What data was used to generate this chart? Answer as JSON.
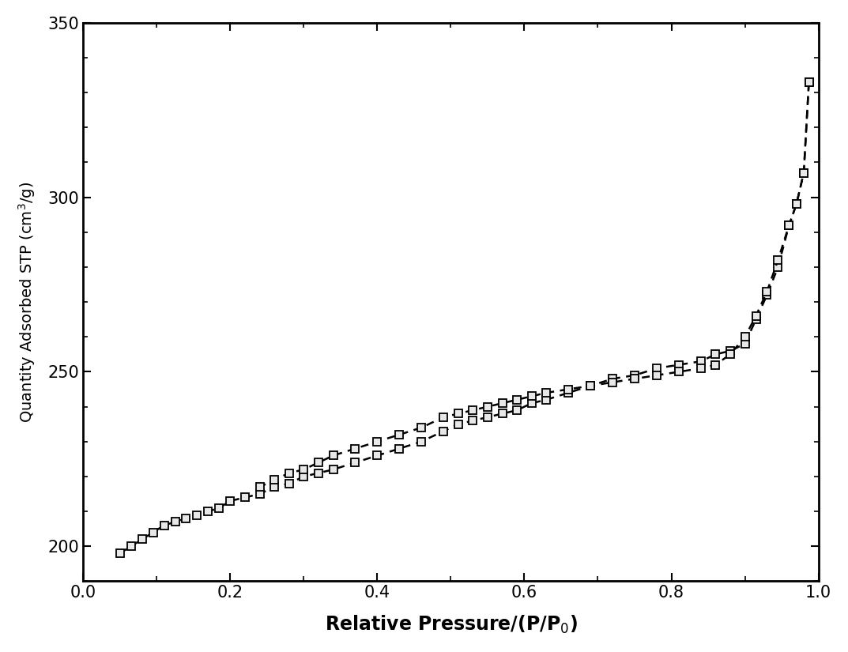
{
  "title": "",
  "xlabel": "Relative Pressure/(P/P$_0$)",
  "ylabel": "Quantity Adsorbed STP (cm$^3$/g)",
  "xlim": [
    0.0,
    1.0
  ],
  "ylim": [
    190,
    350
  ],
  "yticks": [
    200,
    250,
    300,
    350
  ],
  "xticks": [
    0.0,
    0.2,
    0.4,
    0.6,
    0.8,
    1.0
  ],
  "adsorption_x": [
    0.05,
    0.065,
    0.08,
    0.095,
    0.11,
    0.125,
    0.14,
    0.155,
    0.17,
    0.185,
    0.2,
    0.22,
    0.24,
    0.26,
    0.28,
    0.3,
    0.32,
    0.34,
    0.37,
    0.4,
    0.43,
    0.46,
    0.49,
    0.51,
    0.53,
    0.55,
    0.57,
    0.59,
    0.61,
    0.63,
    0.66,
    0.69,
    0.72,
    0.75,
    0.78,
    0.81,
    0.84,
    0.86,
    0.88,
    0.9,
    0.915,
    0.93,
    0.945,
    0.96,
    0.97,
    0.98,
    0.987
  ],
  "adsorption_y": [
    198,
    200,
    202,
    204,
    206,
    207,
    208,
    209,
    210,
    211,
    213,
    214,
    215,
    217,
    218,
    220,
    221,
    222,
    224,
    226,
    228,
    230,
    233,
    235,
    236,
    237,
    238,
    239,
    241,
    242,
    244,
    246,
    248,
    249,
    251,
    252,
    253,
    255,
    256,
    258,
    265,
    272,
    280,
    292,
    298,
    307,
    333
  ],
  "desorption_x": [
    0.987,
    0.98,
    0.97,
    0.96,
    0.945,
    0.93,
    0.915,
    0.9,
    0.88,
    0.86,
    0.84,
    0.81,
    0.78,
    0.75,
    0.72,
    0.69,
    0.66,
    0.63,
    0.61,
    0.59,
    0.57,
    0.55,
    0.53,
    0.51,
    0.49,
    0.46,
    0.43,
    0.4,
    0.37,
    0.34,
    0.32,
    0.3,
    0.28,
    0.26,
    0.24
  ],
  "desorption_y": [
    333,
    307,
    298,
    292,
    282,
    273,
    266,
    260,
    255,
    252,
    251,
    250,
    249,
    248,
    247,
    246,
    245,
    244,
    243,
    242,
    241,
    240,
    239,
    238,
    237,
    234,
    232,
    230,
    228,
    226,
    224,
    222,
    221,
    219,
    217
  ],
  "line_color": "#000000",
  "marker_facecolor": "#e8e8e8",
  "marker_edgecolor": "#000000",
  "marker_size": 7,
  "linewidth": 1.8,
  "xlabel_fontsize": 17,
  "ylabel_fontsize": 14,
  "tick_fontsize": 15,
  "background_color": "#ffffff",
  "figure_bg": "#ffffff"
}
